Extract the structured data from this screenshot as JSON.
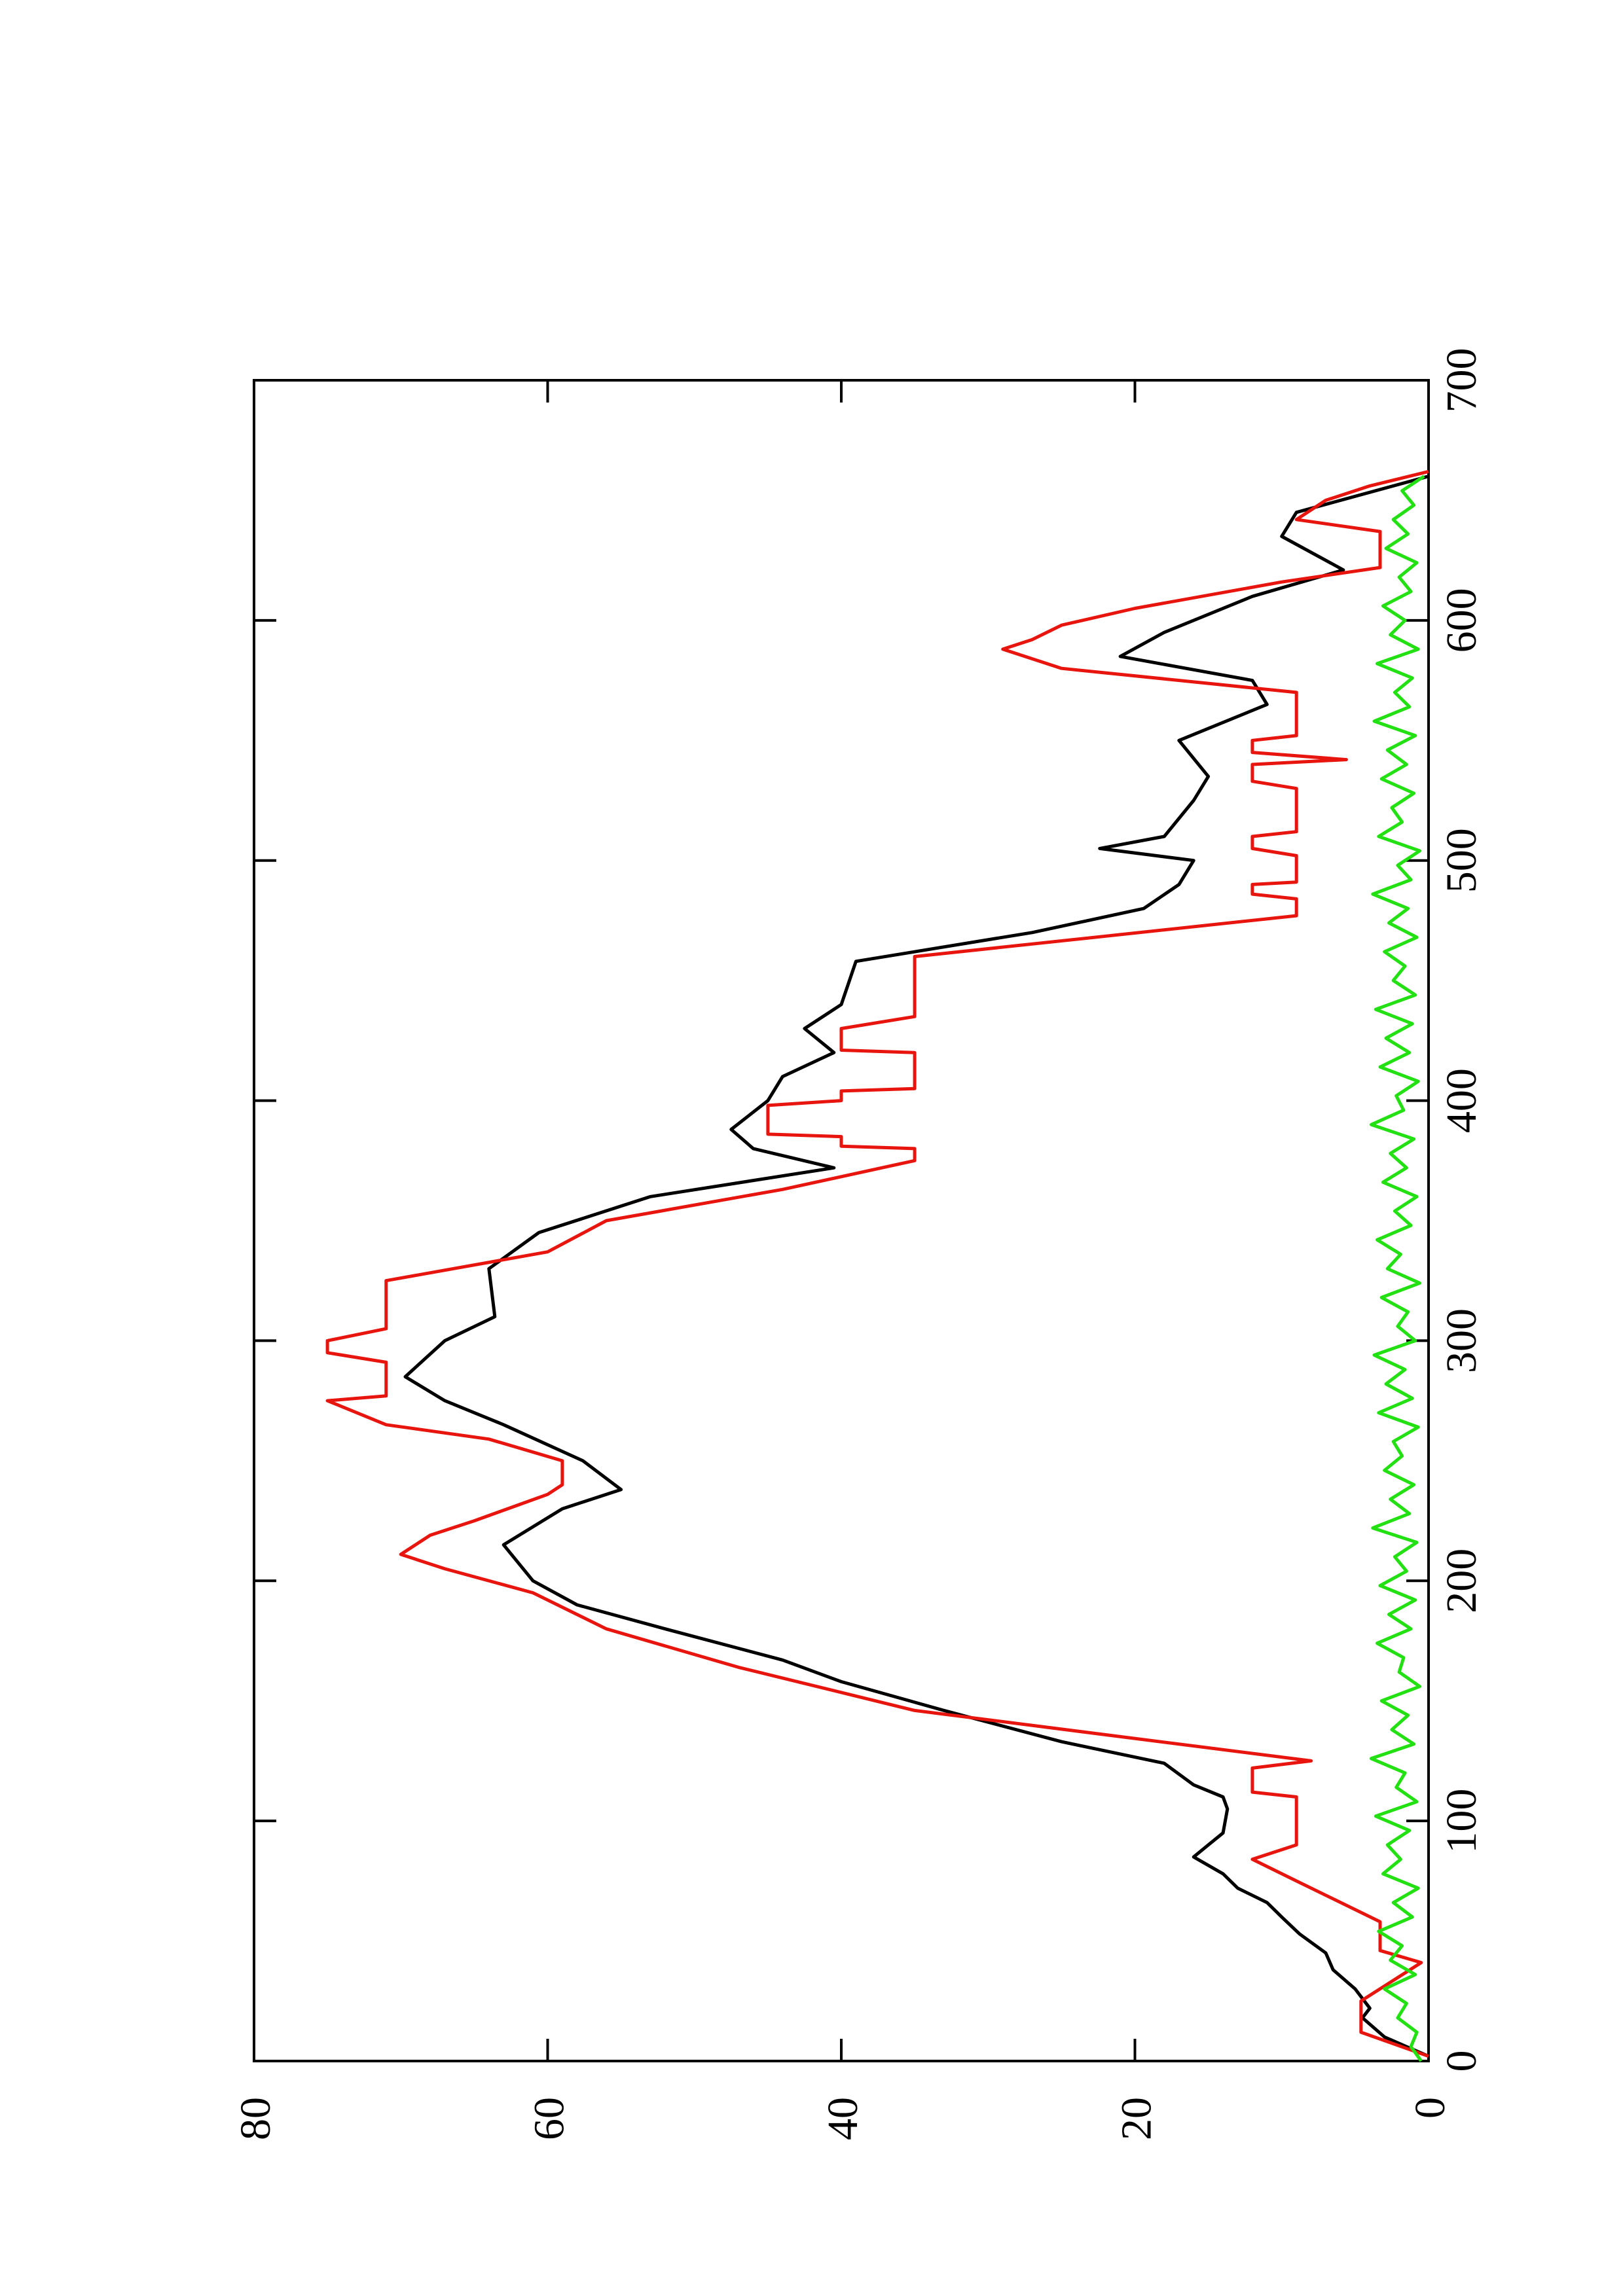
{
  "chart_data": {
    "type": "line",
    "xlim": [
      0,
      700
    ],
    "xticks": [
      0,
      100,
      200,
      300,
      400,
      500,
      600,
      700
    ],
    "ylim": [
      0,
      80
    ],
    "yticks": [
      0,
      20,
      40,
      60,
      80
    ],
    "rotated": true,
    "series": [
      {
        "color": "#000000",
        "x": [
          2,
          10,
          18,
          22,
          30,
          38,
          45,
          53,
          60,
          66,
          72,
          78,
          85,
          90,
          95,
          105,
          110,
          115,
          124,
          133,
          146,
          158,
          167,
          180,
          190,
          200,
          215,
          230,
          238,
          250,
          265,
          275,
          285,
          300,
          310,
          330,
          345,
          360,
          372,
          380,
          388,
          400,
          410,
          420,
          430,
          440,
          458,
          470,
          480,
          490,
          500,
          505,
          510,
          525,
          535,
          550,
          565,
          575,
          585,
          595,
          610,
          621,
          635,
          645,
          660
        ],
        "values": [
          0,
          3,
          4.5,
          4,
          5,
          6.5,
          7,
          8.8,
          10,
          11,
          13,
          14,
          16,
          15,
          14,
          13.7,
          14,
          16,
          18,
          25,
          33,
          40,
          44,
          52,
          58,
          61,
          63,
          59,
          55,
          57.6,
          63,
          67,
          69.7,
          67,
          63.6,
          64,
          60.6,
          53,
          40.5,
          46,
          47.5,
          45,
          44,
          40.5,
          42.5,
          40,
          39,
          27,
          19.4,
          17,
          16,
          22.4,
          18,
          16,
          15,
          17,
          11,
          12,
          21,
          18,
          12,
          5.8,
          10,
          9,
          0
        ]
      },
      {
        "color": "#e8140e",
        "x": [
          2,
          12,
          25,
          41,
          46,
          58,
          75,
          84,
          90,
          110,
          112,
          122,
          125,
          146,
          164,
          180,
          195,
          205,
          211,
          219,
          225,
          236,
          240,
          250,
          259,
          265,
          275,
          277,
          291,
          295,
          300,
          305,
          325,
          337,
          350,
          363,
          375,
          380,
          381,
          385,
          386,
          398,
          400,
          404,
          405,
          420,
          421,
          430,
          435,
          460,
          477,
          484,
          486,
          490,
          491,
          502,
          505,
          510,
          512,
          530,
          533,
          540,
          542,
          545,
          550,
          552,
          570,
          580,
          588,
          592,
          598,
          605,
          616,
          622,
          637,
          642,
          650,
          656,
          662
        ],
        "values": [
          0,
          4.6,
          4.6,
          0.5,
          3.3,
          3.3,
          9,
          12,
          9,
          9,
          12,
          12,
          8,
          35,
          47,
          56,
          61,
          67,
          70,
          68,
          65,
          60,
          59,
          59,
          64,
          71,
          75,
          71,
          71,
          75,
          75,
          71,
          71,
          60,
          56,
          44,
          35,
          35,
          40,
          40,
          45,
          45,
          40,
          40,
          35,
          35,
          40,
          40,
          35,
          35,
          9,
          9,
          12,
          12,
          9,
          9,
          12,
          12,
          9,
          9,
          12,
          12,
          5.6,
          12,
          12,
          9,
          9,
          25,
          29,
          27,
          25,
          20,
          10,
          3.3,
          3.3,
          9,
          7,
          4,
          0
        ]
      },
      {
        "color": "#22e012",
        "x": [
          0,
          6,
          12,
          18,
          24,
          30,
          36,
          42,
          48,
          54,
          60,
          66,
          72,
          78,
          84,
          90,
          96,
          102,
          108,
          114,
          120,
          126,
          132,
          138,
          144,
          150,
          156,
          162,
          168,
          174,
          180,
          186,
          192,
          198,
          204,
          210,
          216,
          222,
          228,
          234,
          240,
          246,
          252,
          258,
          264,
          270,
          276,
          282,
          288,
          294,
          300,
          306,
          312,
          318,
          324,
          330,
          336,
          342,
          348,
          354,
          360,
          366,
          372,
          378,
          384,
          390,
          396,
          402,
          408,
          414,
          420,
          426,
          432,
          438,
          444,
          450,
          456,
          462,
          468,
          474,
          480,
          486,
          492,
          498,
          504,
          510,
          516,
          522,
          528,
          534,
          540,
          546,
          552,
          558,
          564,
          570,
          576,
          582,
          588,
          594,
          600,
          606,
          612,
          618,
          624,
          630,
          636,
          642,
          648,
          654,
          660
        ],
        "values": [
          0.5,
          1.2,
          0.8,
          2.1,
          1.5,
          3.0,
          0.9,
          2.6,
          1.8,
          3.4,
          1.1,
          2.4,
          0.7,
          3.1,
          1.9,
          2.8,
          1.3,
          3.6,
          0.8,
          2.2,
          1.6,
          3.9,
          1.0,
          2.5,
          1.4,
          3.2,
          0.6,
          2.0,
          1.7,
          3.5,
          1.2,
          2.7,
          0.9,
          3.3,
          1.5,
          2.3,
          0.8,
          3.8,
          1.3,
          2.6,
          1.0,
          3.0,
          1.8,
          2.4,
          0.7,
          3.4,
          1.1,
          2.9,
          1.6,
          3.7,
          0.9,
          2.1,
          1.4,
          3.2,
          0.6,
          2.8,
          1.9,
          3.5,
          1.2,
          2.3,
          0.8,
          3.1,
          1.5,
          2.6,
          1.0,
          3.9,
          1.7,
          2.2,
          0.7,
          3.3,
          1.3,
          2.9,
          1.1,
          3.6,
          0.9,
          2.4,
          1.6,
          3.0,
          0.8,
          2.7,
          1.4,
          3.8,
          1.2,
          2.1,
          0.6,
          3.4,
          1.8,
          2.5,
          1.0,
          3.2,
          1.5,
          2.8,
          0.9,
          3.7,
          1.3,
          2.3,
          1.1,
          3.5,
          0.7,
          2.6,
          1.6,
          3.1,
          1.2,
          2.0,
          0.8,
          2.9,
          1.4,
          2.4,
          1.0,
          1.8,
          0.3
        ]
      }
    ]
  }
}
